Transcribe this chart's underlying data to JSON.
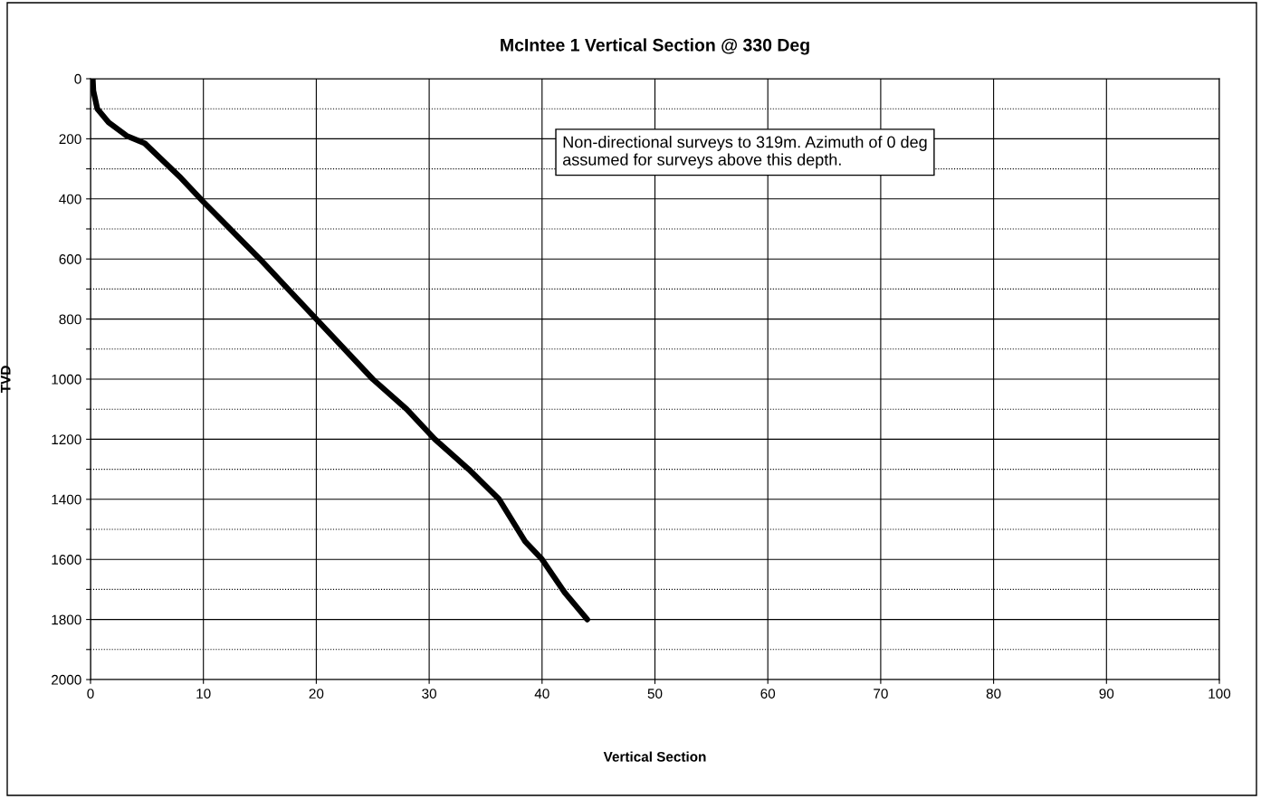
{
  "chart_data": {
    "type": "line",
    "title": "McIntee 1 Vertical Section @ 330 Deg",
    "xlabel": "Vertical Section",
    "ylabel": "TVD",
    "x": [
      0.2,
      0.25,
      0.6,
      1.6,
      3.2,
      4.8,
      8,
      10,
      15,
      18,
      20,
      25,
      28,
      30.5,
      33.5,
      36.2,
      38.5,
      40,
      42,
      44
    ],
    "series": [
      {
        "color": "#000000",
        "values": [
          0,
          40,
          100,
          145,
          190,
          215,
          330,
          410,
          600,
          720,
          800,
          1000,
          1100,
          1200,
          1300,
          1400,
          1540,
          1600,
          1710,
          1800
        ]
      }
    ],
    "xlim": [
      0,
      100
    ],
    "xticks": [
      0,
      10,
      20,
      30,
      40,
      50,
      60,
      70,
      80,
      90,
      100
    ],
    "ylim": [
      2000,
      0
    ],
    "yticks": [
      0,
      {
        "value": 100,
        "label": null
      },
      200,
      {
        "value": 300,
        "label": null
      },
      400,
      {
        "value": 500,
        "label": null
      },
      600,
      {
        "value": 700,
        "label": null
      },
      800,
      {
        "value": 900,
        "label": null
      },
      1000,
      {
        "value": 1100,
        "label": null
      },
      1200,
      {
        "value": 1300,
        "label": null
      },
      1400,
      {
        "value": 1500,
        "label": null
      },
      1600,
      {
        "value": 1700,
        "label": null
      },
      1800,
      {
        "value": 1900,
        "label": null
      },
      2000
    ],
    "grid": true,
    "legend": false,
    "marker": "none",
    "line_style": "solid",
    "annotations": [
      "Non-directional surveys to 319m. Azimuth of 0 deg\nassumed for surveys above this depth."
    ]
  }
}
